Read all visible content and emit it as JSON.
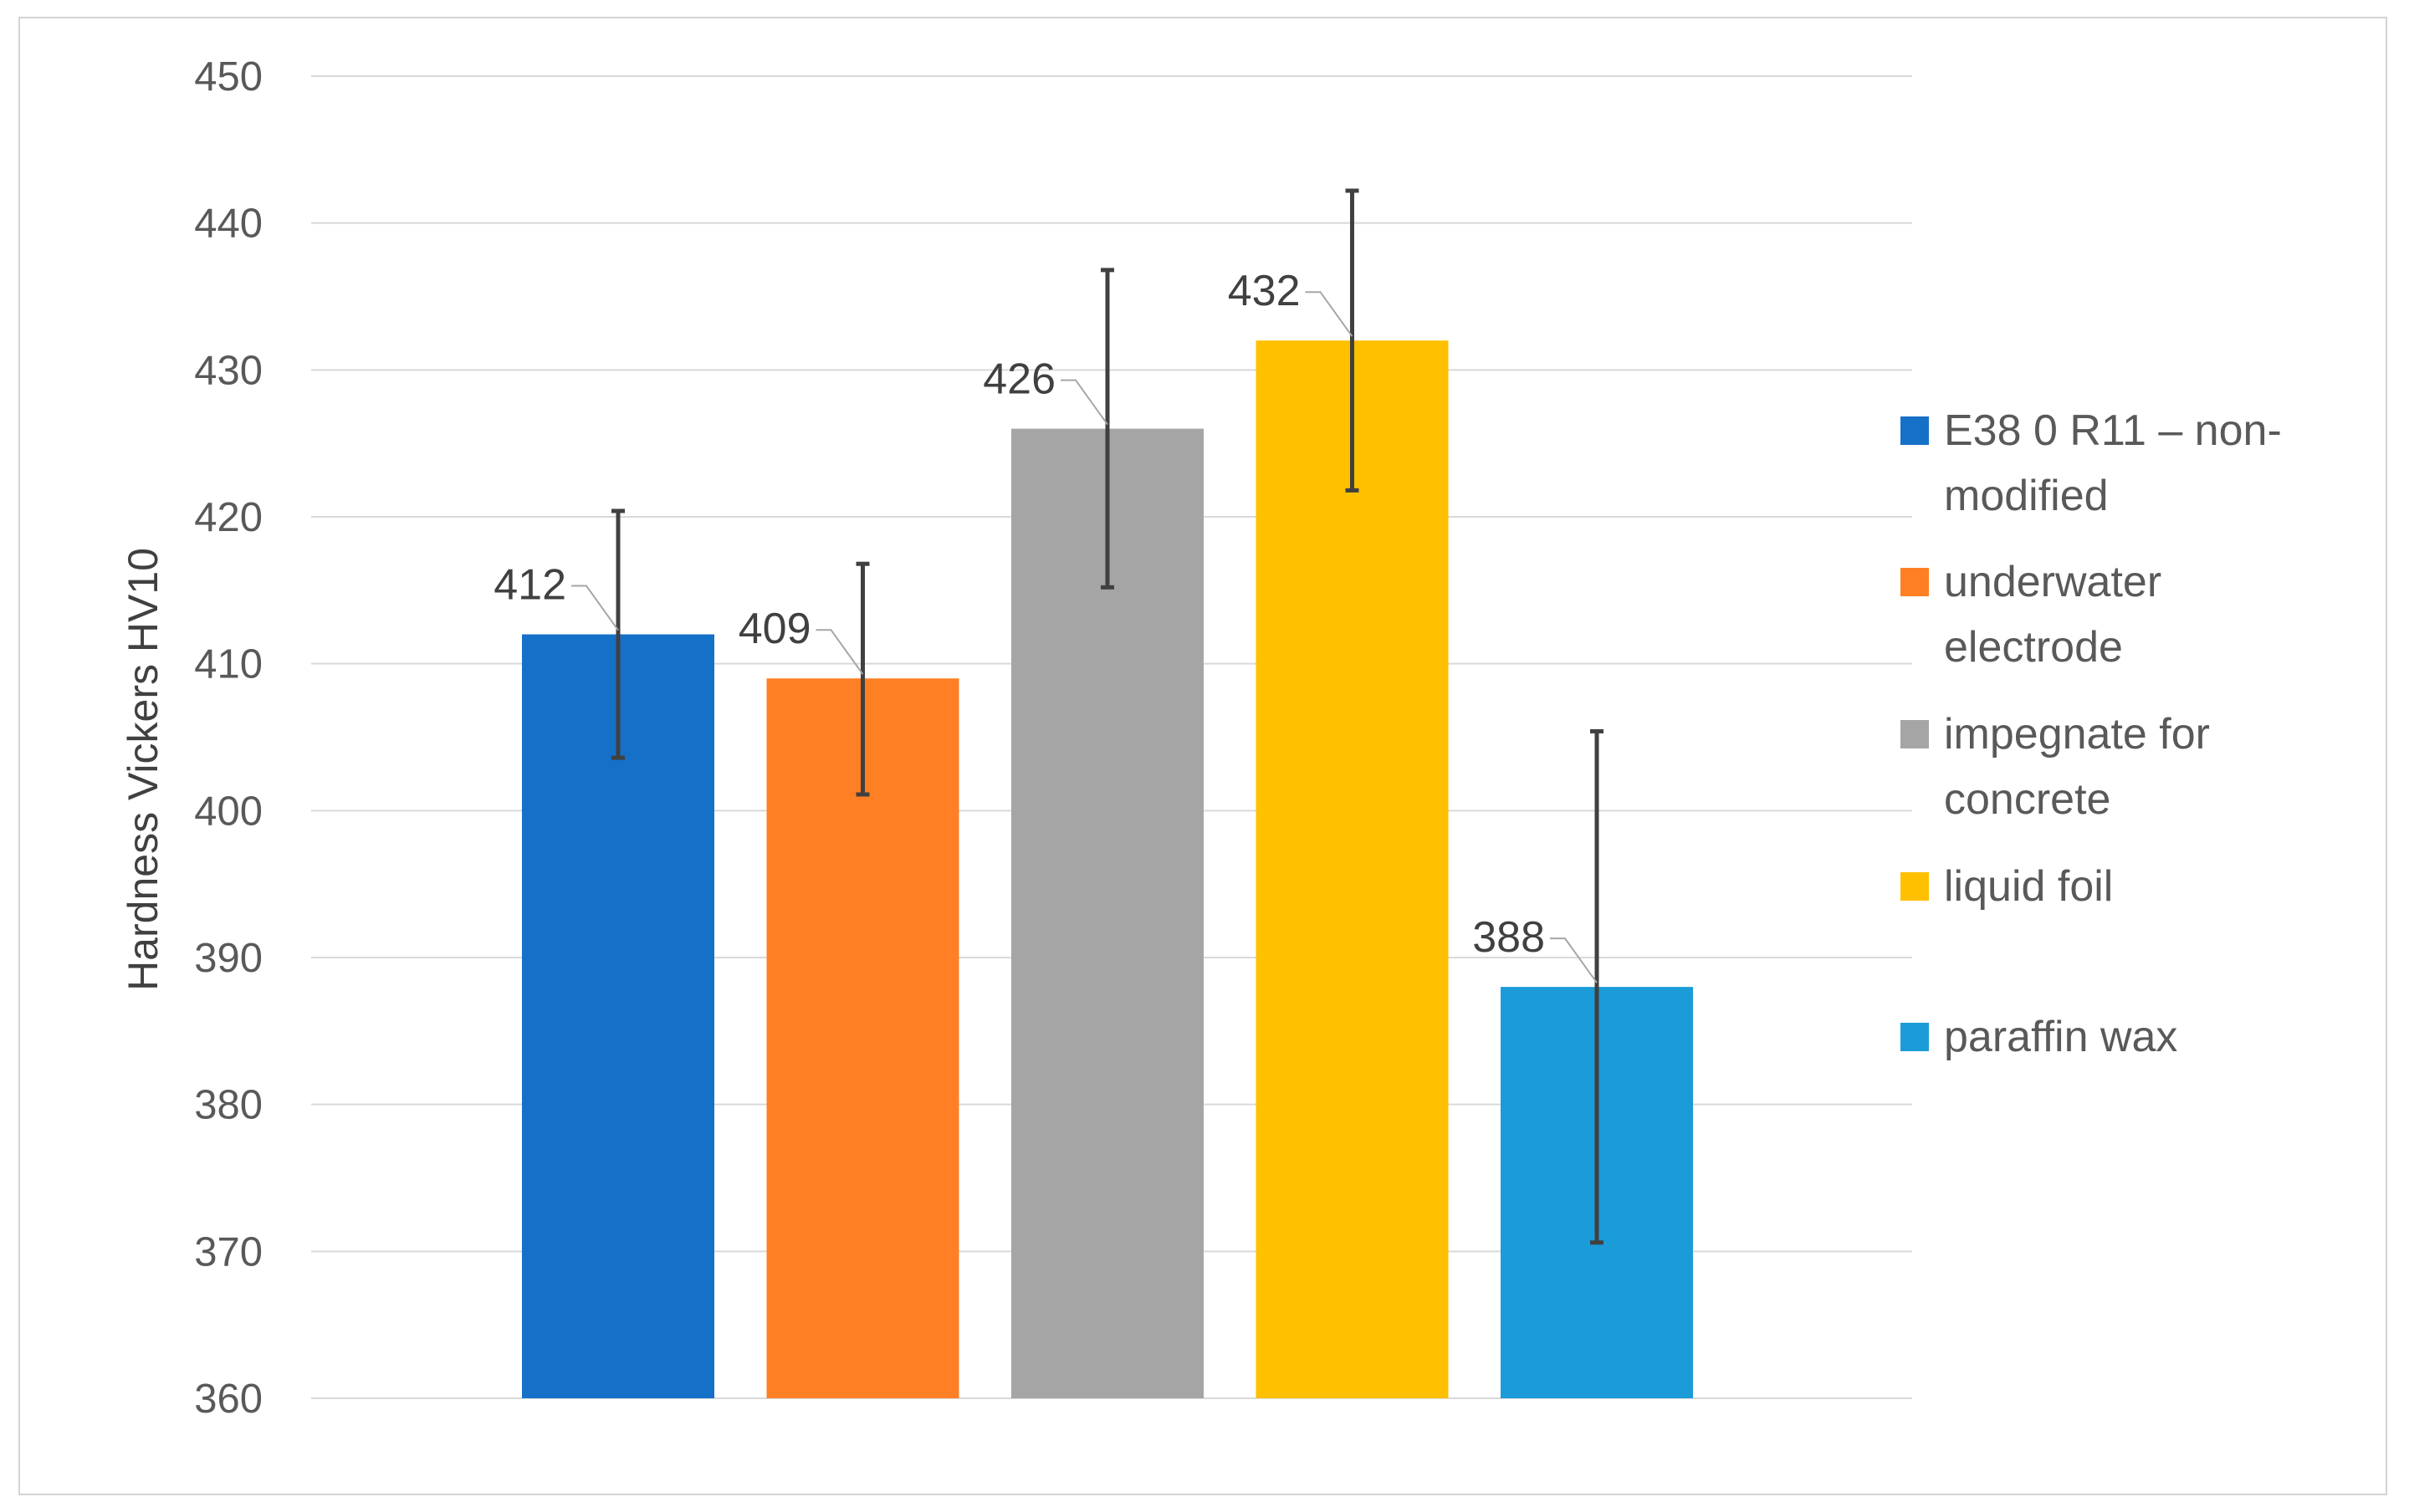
{
  "chart_data": {
    "type": "bar",
    "title": "",
    "xlabel": "",
    "ylabel": "Hardness Vickers HV10",
    "ylim": [
      360,
      450
    ],
    "yticks": [
      360,
      370,
      380,
      390,
      400,
      410,
      420,
      430,
      440,
      450
    ],
    "grid": true,
    "legend_position": "right",
    "series": [
      {
        "name": "E38 0 R11 – non-modified",
        "legend_lines": [
          "E38 0 R11 – non-",
          "modified"
        ],
        "value": 412,
        "error_low": 403.6,
        "error_high": 420.4,
        "color": "#1570C8"
      },
      {
        "name": "underwater electrode",
        "legend_lines": [
          "underwater",
          "electrode"
        ],
        "value": 409,
        "error_low": 401.1,
        "error_high": 416.8,
        "color": "#FF7F24"
      },
      {
        "name": "impegnate for concrete",
        "legend_lines": [
          "impegnate for",
          "concrete"
        ],
        "value": 426,
        "error_low": 415.2,
        "error_high": 436.8,
        "color": "#A5A5A5"
      },
      {
        "name": "liquid foil",
        "legend_lines": [
          "liquid foil"
        ],
        "value": 432,
        "error_low": 421.8,
        "error_high": 442.2,
        "color": "#FFC000"
      },
      {
        "name": "paraffin wax",
        "legend_lines": [
          "paraffin wax"
        ],
        "value": 388,
        "error_low": 370.6,
        "error_high": 405.4,
        "color": "#1B9BD8"
      }
    ]
  }
}
